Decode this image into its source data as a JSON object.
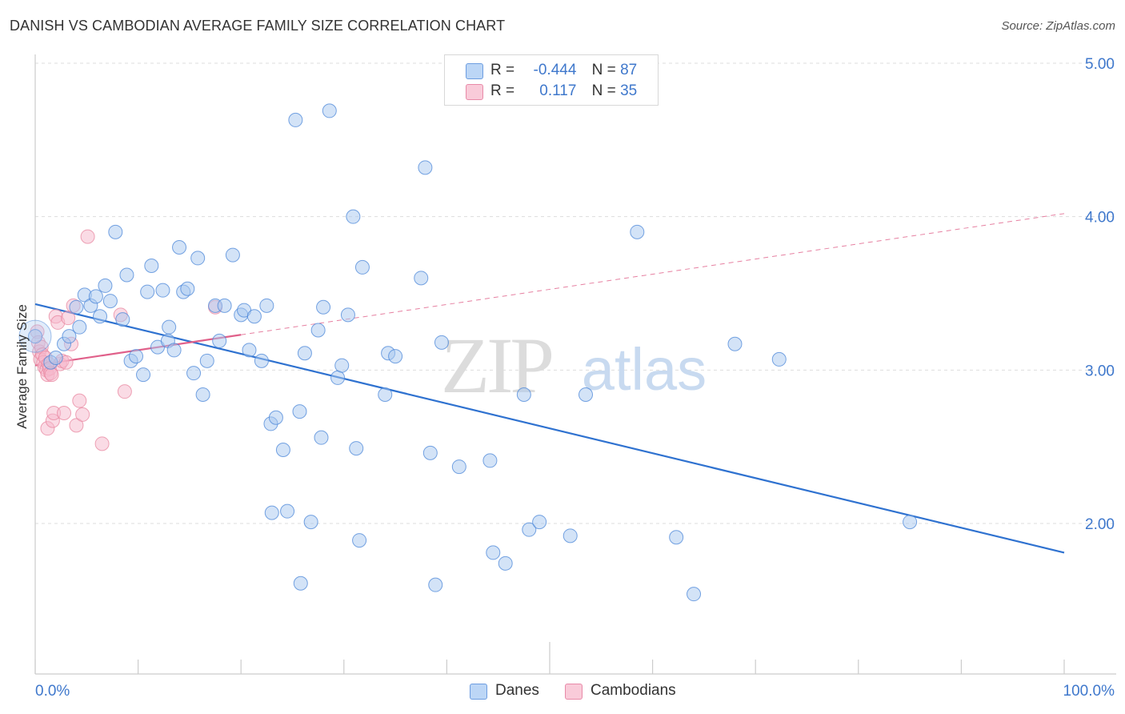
{
  "title": "DANISH VS CAMBODIAN AVERAGE FAMILY SIZE CORRELATION CHART",
  "source": "Source: ZipAtlas.com",
  "watermark": {
    "zip": "ZIP",
    "atlas": "atlas"
  },
  "legend_top": {
    "rows": [
      {
        "r_label": "R =",
        "r_value": "-0.444",
        "n_label": "N =",
        "n_value": "87",
        "color": "#a8c8f0"
      },
      {
        "r_label": "R =",
        "r_value": "0.117",
        "n_label": "N =",
        "n_value": "35",
        "color": "#f5b8cc"
      }
    ]
  },
  "legend_bottom": [
    {
      "label": "Danes",
      "color": "#a8c8f0"
    },
    {
      "label": "Cambodians",
      "color": "#f5b8cc"
    }
  ],
  "chart_data": {
    "type": "scatter",
    "title": "DANISH VS CAMBODIAN AVERAGE FAMILY SIZE CORRELATION CHART",
    "xlabel": "",
    "ylabel": "Average Family Size",
    "xlim": [
      0,
      100
    ],
    "ylim": [
      1.0,
      5.15
    ],
    "x_tick_labels": {
      "min": "0.0%",
      "max": "100.0%"
    },
    "y_ticks": [
      {
        "value": 2.0,
        "label": "2.00"
      },
      {
        "value": 3.0,
        "label": "3.00"
      },
      {
        "value": 4.0,
        "label": "4.00"
      },
      {
        "value": 5.0,
        "label": "5.00"
      }
    ],
    "grid": true,
    "series": [
      {
        "name": "Danes",
        "color": "#4a86d8",
        "fill": "#a8c8f0",
        "trend": {
          "x0": 0,
          "y0": 3.43,
          "x1": 100,
          "y1": 1.81,
          "style": "solid",
          "color": "#2f72d0"
        },
        "points": [
          [
            0.0,
            3.22
          ],
          [
            1.5,
            3.05
          ],
          [
            2.0,
            3.08
          ],
          [
            2.8,
            3.17
          ],
          [
            3.3,
            3.22
          ],
          [
            4.0,
            3.41
          ],
          [
            4.3,
            3.28
          ],
          [
            4.8,
            3.49
          ],
          [
            5.4,
            3.42
          ],
          [
            5.9,
            3.48
          ],
          [
            6.3,
            3.35
          ],
          [
            6.8,
            3.55
          ],
          [
            7.3,
            3.45
          ],
          [
            7.8,
            3.9
          ],
          [
            8.5,
            3.33
          ],
          [
            8.9,
            3.62
          ],
          [
            9.3,
            3.06
          ],
          [
            9.8,
            3.09
          ],
          [
            10.5,
            2.97
          ],
          [
            10.9,
            3.51
          ],
          [
            11.3,
            3.68
          ],
          [
            11.9,
            3.15
          ],
          [
            12.4,
            3.52
          ],
          [
            12.9,
            3.19
          ],
          [
            13.0,
            3.28
          ],
          [
            13.5,
            3.13
          ],
          [
            14.0,
            3.8
          ],
          [
            14.4,
            3.51
          ],
          [
            14.8,
            3.53
          ],
          [
            15.4,
            2.98
          ],
          [
            15.8,
            3.73
          ],
          [
            16.3,
            2.84
          ],
          [
            16.7,
            3.06
          ],
          [
            17.5,
            3.42
          ],
          [
            17.9,
            3.19
          ],
          [
            18.4,
            3.42
          ],
          [
            19.2,
            3.75
          ],
          [
            20.0,
            3.36
          ],
          [
            20.3,
            3.39
          ],
          [
            21.3,
            3.35
          ],
          [
            20.8,
            3.13
          ],
          [
            22.0,
            3.06
          ],
          [
            22.5,
            3.42
          ],
          [
            22.9,
            2.65
          ],
          [
            23.4,
            2.69
          ],
          [
            24.1,
            2.48
          ],
          [
            24.5,
            2.08
          ],
          [
            23.0,
            2.07
          ],
          [
            25.3,
            4.63
          ],
          [
            25.7,
            2.73
          ],
          [
            25.8,
            1.61
          ],
          [
            26.2,
            3.11
          ],
          [
            26.8,
            2.01
          ],
          [
            27.5,
            3.26
          ],
          [
            27.8,
            2.56
          ],
          [
            28.0,
            3.41
          ],
          [
            28.6,
            4.69
          ],
          [
            29.4,
            2.95
          ],
          [
            29.8,
            3.03
          ],
          [
            30.4,
            3.36
          ],
          [
            30.9,
            4.0
          ],
          [
            31.5,
            1.89
          ],
          [
            31.2,
            2.49
          ],
          [
            31.8,
            3.67
          ],
          [
            34.0,
            2.84
          ],
          [
            34.3,
            3.11
          ],
          [
            35.0,
            3.09
          ],
          [
            37.5,
            3.6
          ],
          [
            37.9,
            4.32
          ],
          [
            38.4,
            2.46
          ],
          [
            38.9,
            1.6
          ],
          [
            39.5,
            3.18
          ],
          [
            41.2,
            2.37
          ],
          [
            44.2,
            2.41
          ],
          [
            44.5,
            1.81
          ],
          [
            45.7,
            1.74
          ],
          [
            47.5,
            2.84
          ],
          [
            48.0,
            1.96
          ],
          [
            49.0,
            2.01
          ],
          [
            52.0,
            1.92
          ],
          [
            53.5,
            2.84
          ],
          [
            58.5,
            3.9
          ],
          [
            62.3,
            1.91
          ],
          [
            64.0,
            1.54
          ],
          [
            68.0,
            3.17
          ],
          [
            72.3,
            3.07
          ],
          [
            85.0,
            2.01
          ]
        ]
      },
      {
        "name": "Cambodians",
        "color": "#e8859f",
        "fill": "#f5b8cc",
        "trend": {
          "x0": 0,
          "y0": 3.03,
          "x1": 20,
          "y1": 3.23,
          "style": "solid",
          "color": "#e0608a",
          "extension": {
            "x1": 100,
            "y1": 4.02,
            "style": "dashed"
          }
        },
        "points": [
          [
            0.2,
            3.25
          ],
          [
            0.3,
            3.18
          ],
          [
            0.4,
            3.12
          ],
          [
            0.5,
            3.07
          ],
          [
            0.6,
            3.15
          ],
          [
            0.7,
            3.1
          ],
          [
            0.8,
            3.05
          ],
          [
            0.9,
            3.02
          ],
          [
            1.0,
            3.08
          ],
          [
            1.1,
            3.0
          ],
          [
            1.2,
            2.97
          ],
          [
            1.3,
            3.04
          ],
          [
            1.4,
            3.01
          ],
          [
            1.5,
            2.98
          ],
          [
            1.6,
            2.97
          ],
          [
            1.2,
            2.62
          ],
          [
            1.7,
            2.67
          ],
          [
            1.8,
            2.72
          ],
          [
            2.0,
            3.35
          ],
          [
            2.2,
            3.31
          ],
          [
            2.4,
            3.04
          ],
          [
            2.6,
            3.06
          ],
          [
            2.8,
            2.72
          ],
          [
            3.0,
            3.05
          ],
          [
            3.2,
            3.34
          ],
          [
            3.5,
            3.17
          ],
          [
            3.7,
            3.42
          ],
          [
            4.0,
            2.64
          ],
          [
            4.3,
            2.8
          ],
          [
            4.6,
            2.71
          ],
          [
            5.1,
            3.87
          ],
          [
            6.5,
            2.52
          ],
          [
            8.3,
            3.36
          ],
          [
            8.7,
            2.86
          ],
          [
            17.5,
            3.41
          ]
        ]
      }
    ]
  }
}
